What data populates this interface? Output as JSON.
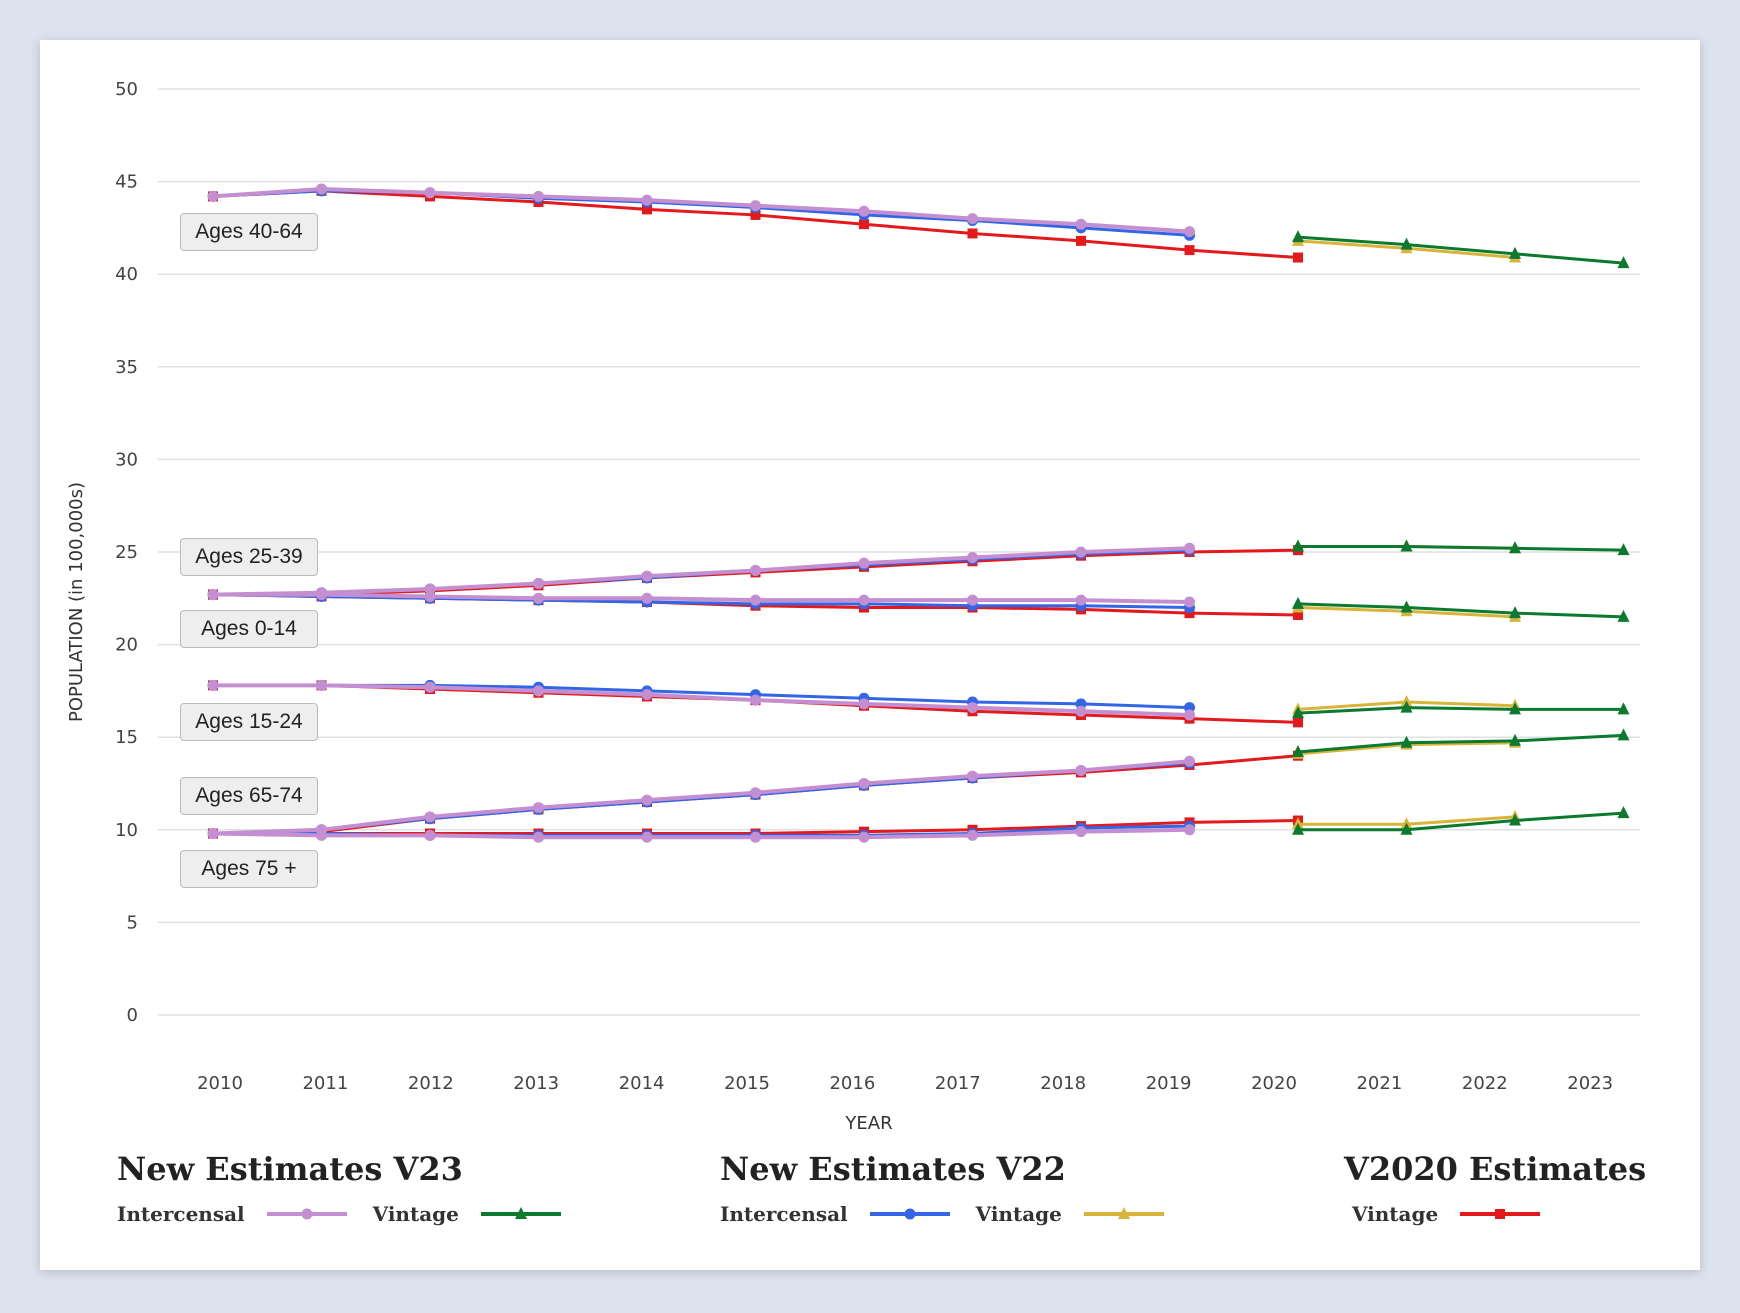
{
  "chart_data": {
    "type": "line",
    "xlabel": "YEAR",
    "ylabel": "POPULATION (in 100,000s)",
    "ylim": [
      0,
      50
    ],
    "yticks": [
      "0",
      "5",
      "10",
      "15",
      "20",
      "25",
      "30",
      "35",
      "40",
      "45",
      "50"
    ],
    "xticks": [
      "2010",
      "2011",
      "2012",
      "2013",
      "2014",
      "2015",
      "2016",
      "2017",
      "2018",
      "2019",
      "2020",
      "2021",
      "2022",
      "2023"
    ],
    "grid": true,
    "legend_placement": "bottom",
    "age_groups": [
      "Ages 40-64",
      "Ages 25-39",
      "Ages 0-14",
      "Ages 15-24",
      "Ages 65-74",
      "Ages 75 +"
    ],
    "legend_groups": [
      {
        "title": "New Estimates V23",
        "items": [
          {
            "label": "Intercensal",
            "series": "v23i"
          },
          {
            "label": "Vintage",
            "series": "v23v"
          }
        ]
      },
      {
        "title": "New Estimates V22",
        "items": [
          {
            "label": "Intercensal",
            "series": "v22i"
          },
          {
            "label": "Vintage",
            "series": "v22v"
          }
        ]
      },
      {
        "title": "V2020 Estimates",
        "items": [
          {
            "label": "Vintage",
            "series": "v20v"
          }
        ]
      }
    ],
    "series": [
      {
        "id": "v20v",
        "color": "#e3191c",
        "marker": "square",
        "start_year": 2010,
        "data": {
          "Ages 40-64": [
            44.2,
            44.5,
            44.2,
            43.9,
            43.5,
            43.2,
            42.7,
            42.2,
            41.8,
            41.3,
            40.9
          ],
          "Ages 25-39": [
            22.7,
            22.7,
            22.9,
            23.2,
            23.6,
            23.9,
            24.2,
            24.5,
            24.8,
            25.0,
            25.1
          ],
          "Ages 0-14": [
            22.7,
            22.6,
            22.5,
            22.4,
            22.3,
            22.1,
            22.0,
            22.0,
            21.9,
            21.7,
            21.6
          ],
          "Ages 15-24": [
            17.8,
            17.8,
            17.6,
            17.4,
            17.2,
            17.0,
            16.7,
            16.4,
            16.2,
            16.0,
            15.8
          ],
          "Ages 65-74": [
            9.8,
            9.9,
            10.6,
            11.1,
            11.5,
            11.9,
            12.4,
            12.8,
            13.1,
            13.5,
            14.0
          ],
          "Ages 75 +": [
            9.8,
            9.8,
            9.8,
            9.8,
            9.8,
            9.8,
            9.9,
            10.0,
            10.2,
            10.4,
            10.5
          ]
        }
      },
      {
        "id": "v22i",
        "color": "#3366e6",
        "marker": "circle",
        "start_year": 2010,
        "data": {
          "Ages 40-64": [
            44.2,
            44.5,
            44.4,
            44.1,
            43.9,
            43.6,
            43.2,
            42.9,
            42.5,
            42.1
          ],
          "Ages 25-39": [
            22.7,
            22.8,
            23.0,
            23.3,
            23.6,
            24.0,
            24.3,
            24.6,
            24.9,
            25.1
          ],
          "Ages 0-14": [
            22.7,
            22.6,
            22.5,
            22.4,
            22.3,
            22.2,
            22.2,
            22.1,
            22.1,
            22.0
          ],
          "Ages 15-24": [
            17.8,
            17.8,
            17.8,
            17.7,
            17.5,
            17.3,
            17.1,
            16.9,
            16.8,
            16.6
          ],
          "Ages 65-74": [
            9.8,
            10.0,
            10.6,
            11.1,
            11.5,
            11.9,
            12.4,
            12.8,
            13.2,
            13.6
          ],
          "Ages 75 +": [
            9.8,
            9.8,
            9.7,
            9.7,
            9.7,
            9.7,
            9.7,
            9.8,
            10.1,
            10.2
          ]
        }
      },
      {
        "id": "v23i",
        "color": "#c48fd0",
        "marker": "circle",
        "start_year": 2010,
        "data": {
          "Ages 40-64": [
            44.2,
            44.6,
            44.4,
            44.2,
            44.0,
            43.7,
            43.4,
            43.0,
            42.7,
            42.3
          ],
          "Ages 25-39": [
            22.7,
            22.8,
            23.0,
            23.3,
            23.7,
            24.0,
            24.4,
            24.7,
            25.0,
            25.2
          ],
          "Ages 0-14": [
            22.7,
            22.7,
            22.6,
            22.5,
            22.5,
            22.4,
            22.4,
            22.4,
            22.4,
            22.3
          ],
          "Ages 15-24": [
            17.8,
            17.8,
            17.7,
            17.5,
            17.3,
            17.0,
            16.8,
            16.6,
            16.4,
            16.2
          ],
          "Ages 65-74": [
            9.8,
            10.0,
            10.7,
            11.2,
            11.6,
            12.0,
            12.5,
            12.9,
            13.2,
            13.7
          ],
          "Ages 75 +": [
            9.8,
            9.7,
            9.7,
            9.6,
            9.6,
            9.6,
            9.6,
            9.7,
            9.9,
            10.0
          ]
        }
      },
      {
        "id": "v22v",
        "color": "#d9b43a",
        "marker": "triangle",
        "start_year": 2020,
        "data": {
          "Ages 40-64": [
            41.8,
            41.4,
            40.9
          ],
          "Ages 25-39": [
            25.3,
            25.3,
            25.2
          ],
          "Ages 0-14": [
            22.0,
            21.8,
            21.5
          ],
          "Ages 15-24": [
            16.5,
            16.9,
            16.7
          ],
          "Ages 65-74": [
            14.1,
            14.6,
            14.7
          ],
          "Ages 75 +": [
            10.3,
            10.3,
            10.7
          ]
        }
      },
      {
        "id": "v23v",
        "color": "#0b7a2e",
        "marker": "triangle",
        "start_year": 2020,
        "data": {
          "Ages 40-64": [
            42.0,
            41.6,
            41.1,
            40.6
          ],
          "Ages 25-39": [
            25.3,
            25.3,
            25.2,
            25.1
          ],
          "Ages 0-14": [
            22.2,
            22.0,
            21.7,
            21.5
          ],
          "Ages 15-24": [
            16.3,
            16.6,
            16.5,
            16.5
          ],
          "Ages 65-74": [
            14.2,
            14.7,
            14.8,
            15.1
          ],
          "Ages 75 +": [
            10.0,
            10.0,
            10.5,
            10.9
          ]
        }
      }
    ]
  }
}
